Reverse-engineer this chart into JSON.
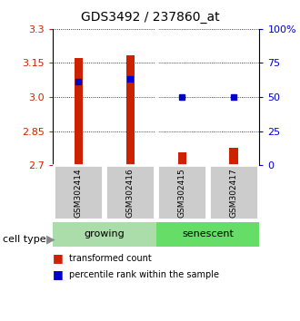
{
  "title": "GDS3492 / 237860_at",
  "samples": [
    "GSM302414",
    "GSM302416",
    "GSM302415",
    "GSM302417"
  ],
  "bar_baseline": 2.7,
  "bar_tops": [
    3.17,
    3.185,
    2.758,
    2.778
  ],
  "percentile_values": [
    3.07,
    3.08,
    3.0,
    3.0
  ],
  "ylim": [
    2.7,
    3.3
  ],
  "yticks_left": [
    2.7,
    2.85,
    3.0,
    3.15,
    3.3
  ],
  "yticks_right": [
    0,
    25,
    50,
    75,
    100
  ],
  "bar_color": "#cc2200",
  "blue_color": "#0000cc",
  "group_labels": [
    "growing",
    "senescent"
  ],
  "group_colors": [
    "#aaddaa",
    "#66dd66"
  ],
  "sample_box_color": "#cccccc",
  "background_color": "#ffffff",
  "legend_red_label": "transformed count",
  "legend_blue_label": "percentile rank within the sample",
  "cell_type_label": "cell type"
}
